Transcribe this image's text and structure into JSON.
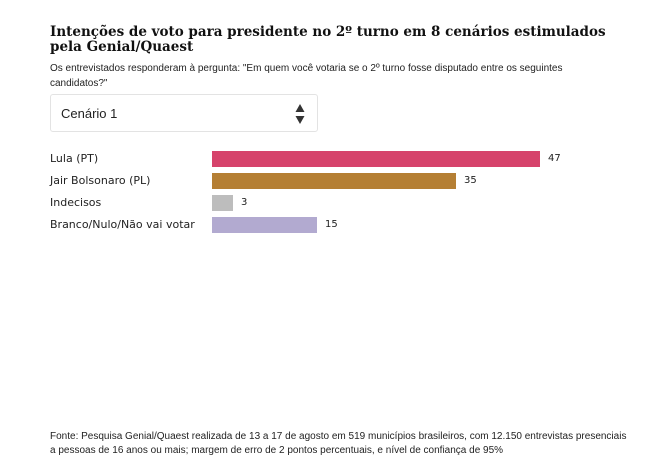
{
  "header": {
    "title": "Intenções de voto para presidente no 2º turno em 8 cenários estimulados pela Genial/Quaest",
    "subtitle": "Os entrevistados responderam à pergunta: \"Em quem você votaria se o 2º turno fosse disputado entre os seguintes candidatos?\""
  },
  "scenario_select": {
    "selected": "Cenário 1",
    "icon": "updown-arrows-icon"
  },
  "chart_data": {
    "type": "bar",
    "orientation": "horizontal",
    "categories": [
      "Lula (PT)",
      "Jair Bolsonaro (PL)",
      "Indecisos",
      "Branco/Nulo/Não vai votar"
    ],
    "values": [
      47,
      35,
      3,
      15
    ],
    "colors": [
      "#d6436b",
      "#b57f34",
      "#bdbdbd",
      "#b2aad0"
    ],
    "xlim": [
      0,
      50
    ],
    "grid": false,
    "legend": "none"
  },
  "footer": {
    "source": "Fonte: Pesquisa Genial/Quaest realizada de 13 a 17 de agosto em 519 municípios brasileiros, com 12.150 entrevistas presenciais a pessoas de 16 anos ou mais; margem de erro de 2 pontos percentuais, e nível de confiança de 95%"
  }
}
